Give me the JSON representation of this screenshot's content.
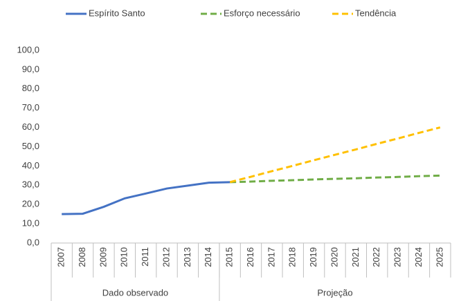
{
  "chart_data": {
    "type": "line",
    "categories": [
      "2007",
      "2008",
      "2009",
      "2010",
      "2011",
      "2012",
      "2013",
      "2014",
      "2015",
      "2016",
      "2017",
      "2018",
      "2019",
      "2020",
      "2021",
      "2022",
      "2023",
      "2024",
      "2025"
    ],
    "category_groups": [
      {
        "label": "Dado observado",
        "span": 8
      },
      {
        "label": "Projeção",
        "span": 11
      }
    ],
    "series": [
      {
        "name": "Espírito Santo",
        "color": "#4472c4",
        "dashed": false,
        "values": [
          15.0,
          15.2,
          18.8,
          23.2,
          25.7,
          28.3,
          29.8,
          31.3,
          31.6,
          null,
          null,
          null,
          null,
          null,
          null,
          null,
          null,
          null,
          null
        ]
      },
      {
        "name": "Esforço necessário",
        "color": "#70ad47",
        "dashed": true,
        "values": [
          null,
          null,
          null,
          null,
          null,
          null,
          null,
          null,
          31.6,
          31.9,
          32.3,
          32.6,
          33.0,
          33.3,
          33.6,
          34.0,
          34.3,
          34.7,
          35.0
        ]
      },
      {
        "name": "Tendência",
        "color": "#ffc000",
        "dashed": true,
        "values": [
          null,
          null,
          null,
          null,
          null,
          null,
          null,
          null,
          31.6,
          34.4,
          37.3,
          40.1,
          43.0,
          45.8,
          48.6,
          51.5,
          54.3,
          57.2,
          60.0
        ]
      }
    ],
    "ylim": [
      0,
      100
    ],
    "yticks": [
      {
        "value": 0,
        "label": "0,0"
      },
      {
        "value": 10,
        "label": "10,0"
      },
      {
        "value": 20,
        "label": "20,0"
      },
      {
        "value": 30,
        "label": "30,0"
      },
      {
        "value": 40,
        "label": "40,0"
      },
      {
        "value": 50,
        "label": "50,0"
      },
      {
        "value": 60,
        "label": "60,0"
      },
      {
        "value": 70,
        "label": "70,0"
      },
      {
        "value": 80,
        "label": "80,0"
      },
      {
        "value": 90,
        "label": "90,0"
      },
      {
        "value": 100,
        "label": "100,0"
      }
    ],
    "grid": false,
    "legend": "top"
  }
}
